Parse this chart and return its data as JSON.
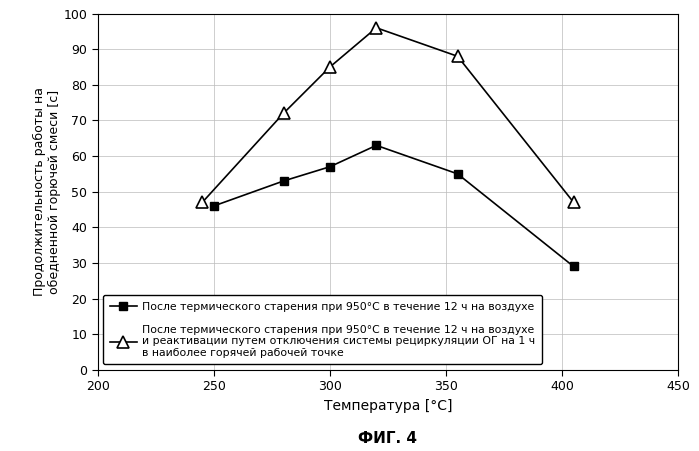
{
  "series1_x": [
    250,
    280,
    300,
    320,
    355,
    405
  ],
  "series1_y": [
    46,
    53,
    57,
    63,
    55,
    29
  ],
  "series2_x": [
    245,
    280,
    300,
    320,
    355,
    405
  ],
  "series2_y": [
    47,
    72,
    85,
    96,
    88,
    47
  ],
  "xlim": [
    200,
    450
  ],
  "ylim": [
    0,
    100
  ],
  "xticks": [
    200,
    250,
    300,
    350,
    400,
    450
  ],
  "yticks": [
    0,
    10,
    20,
    30,
    40,
    50,
    60,
    70,
    80,
    90,
    100
  ],
  "xlabel": "Температура [°C]",
  "ylabel": "Продолжительность работы на\nобедненной горючей смеси [с]",
  "fig_label": "ФИГ. 4",
  "legend1": "После термического старения при 950°C в течение 12 ч на воздухе",
  "legend2": "После термического старения при 950°C в течение 12 ч на воздухе\nи реактивации путем отключения системы рециркуляции ОГ на 1 ч\nв наиболее горячей рабочей точке",
  "bg_color": "#ffffff",
  "line_color": "#000000",
  "grid_color": "#bbbbbb"
}
